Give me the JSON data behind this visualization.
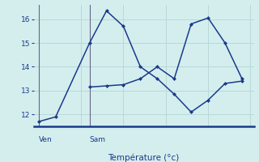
{
  "line1_x": [
    0,
    1,
    3,
    4,
    5,
    6,
    7,
    8,
    9,
    10,
    11,
    12
  ],
  "line1_y": [
    11.7,
    11.9,
    15.0,
    16.35,
    15.7,
    14.0,
    13.5,
    12.85,
    12.1,
    12.6,
    13.3,
    13.4
  ],
  "line2_x": [
    3,
    4,
    5,
    6,
    7,
    8,
    9,
    10,
    11,
    12
  ],
  "line2_y": [
    13.15,
    13.2,
    13.25,
    13.5,
    14.0,
    13.5,
    15.8,
    16.05,
    15.0,
    13.5
  ],
  "line_color": "#1a3a8c",
  "bg_color": "#d4eeee",
  "grid_color": "#b8d8d8",
  "axis_color": "#1a3a8c",
  "tick_color": "#1a3a8c",
  "label_color": "#1a3a8c",
  "xlabel": "Température (°c)",
  "ylim": [
    11.5,
    16.6
  ],
  "yticks": [
    12,
    13,
    14,
    15,
    16
  ],
  "xlim": [
    -0.3,
    12.7
  ],
  "ven_x": 0,
  "sam_x": 3,
  "vline_color": "#666688"
}
